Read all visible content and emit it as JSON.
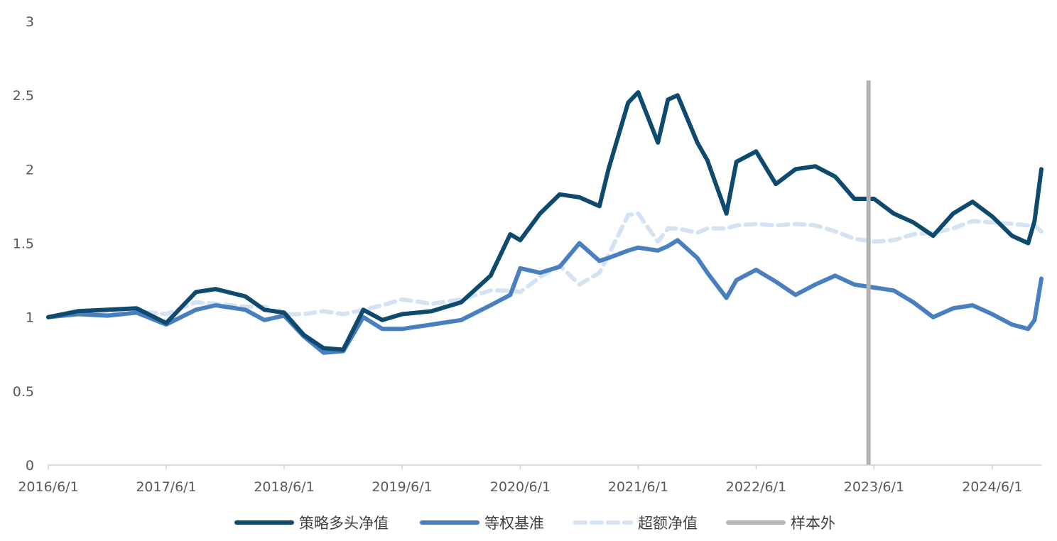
{
  "chart_data": {
    "type": "line",
    "title": "",
    "xlabel": "",
    "ylabel": "",
    "ylim": [
      0,
      3
    ],
    "yticks": [
      "0",
      "0.5",
      "1",
      "1.5",
      "2",
      "2.5",
      "3"
    ],
    "xlim": [
      "2016-06-01",
      "2024-10-31"
    ],
    "xtick_labels": [
      "2016/6/1",
      "2017/6/1",
      "2018/6/1",
      "2019/6/1",
      "2020/6/1",
      "2021/6/1",
      "2022/6/1",
      "2023/6/1",
      "2024/6/1"
    ],
    "xtick_dates": [
      "2016-06-01",
      "2017-06-01",
      "2018-06-01",
      "2019-06-01",
      "2020-06-01",
      "2021-06-01",
      "2022-06-01",
      "2023-06-01",
      "2024-06-01"
    ],
    "grid": false,
    "legend_position": "bottom",
    "colors": {
      "strategy": "#0d4a6e",
      "benchmark": "#4a7fbf",
      "excess": "#d3e3f3",
      "out_of_sample": "#b3b3b3"
    },
    "series": [
      {
        "name": "策略多头净值",
        "style": "solid",
        "x": [
          "2016-06-01",
          "2016-09-01",
          "2016-12-01",
          "2017-03-01",
          "2017-06-01",
          "2017-09-01",
          "2017-11-01",
          "2018-02-01",
          "2018-04-01",
          "2018-06-01",
          "2018-08-01",
          "2018-10-01",
          "2018-12-01",
          "2019-02-01",
          "2019-04-01",
          "2019-06-01",
          "2019-09-01",
          "2019-12-01",
          "2020-03-01",
          "2020-05-01",
          "2020-06-01",
          "2020-08-01",
          "2020-10-01",
          "2020-12-01",
          "2021-02-01",
          "2021-03-01",
          "2021-05-01",
          "2021-06-01",
          "2021-08-01",
          "2021-09-01",
          "2021-10-01",
          "2021-12-01",
          "2022-01-01",
          "2022-03-01",
          "2022-04-01",
          "2022-06-01",
          "2022-08-01",
          "2022-10-01",
          "2022-12-01",
          "2023-02-01",
          "2023-04-01",
          "2023-06-01",
          "2023-08-01",
          "2023-10-01",
          "2023-12-01",
          "2024-02-01",
          "2024-04-01",
          "2024-06-01",
          "2024-08-01",
          "2024-09-20",
          "2024-10-10",
          "2024-10-31"
        ],
        "values": [
          1.0,
          1.04,
          1.05,
          1.06,
          0.96,
          1.17,
          1.19,
          1.14,
          1.05,
          1.03,
          0.88,
          0.79,
          0.78,
          1.05,
          0.98,
          1.02,
          1.04,
          1.1,
          1.28,
          1.56,
          1.52,
          1.7,
          1.83,
          1.81,
          1.75,
          2.0,
          2.45,
          2.52,
          2.18,
          2.47,
          2.5,
          2.18,
          2.06,
          1.7,
          2.05,
          2.12,
          1.9,
          2.0,
          2.02,
          1.95,
          1.8,
          1.8,
          1.7,
          1.64,
          1.55,
          1.7,
          1.78,
          1.68,
          1.55,
          1.5,
          1.65,
          2.0
        ]
      },
      {
        "name": "等权基准",
        "style": "solid",
        "x": [
          "2016-06-01",
          "2016-09-01",
          "2016-12-01",
          "2017-03-01",
          "2017-06-01",
          "2017-09-01",
          "2017-11-01",
          "2018-02-01",
          "2018-04-01",
          "2018-06-01",
          "2018-08-01",
          "2018-10-01",
          "2018-12-01",
          "2019-02-01",
          "2019-04-01",
          "2019-06-01",
          "2019-09-01",
          "2019-12-01",
          "2020-03-01",
          "2020-05-01",
          "2020-06-01",
          "2020-08-01",
          "2020-10-01",
          "2020-12-01",
          "2021-02-01",
          "2021-03-01",
          "2021-05-01",
          "2021-06-01",
          "2021-08-01",
          "2021-09-01",
          "2021-10-01",
          "2021-12-01",
          "2022-01-01",
          "2022-03-01",
          "2022-04-01",
          "2022-06-01",
          "2022-08-01",
          "2022-10-01",
          "2022-12-01",
          "2023-02-01",
          "2023-04-01",
          "2023-06-01",
          "2023-08-01",
          "2023-10-01",
          "2023-12-01",
          "2024-02-01",
          "2024-04-01",
          "2024-06-01",
          "2024-08-01",
          "2024-09-20",
          "2024-10-10",
          "2024-10-31"
        ],
        "values": [
          1.0,
          1.02,
          1.01,
          1.03,
          0.95,
          1.05,
          1.08,
          1.05,
          0.98,
          1.01,
          0.87,
          0.76,
          0.77,
          1.0,
          0.92,
          0.92,
          0.95,
          0.98,
          1.08,
          1.15,
          1.33,
          1.3,
          1.34,
          1.5,
          1.38,
          1.4,
          1.45,
          1.47,
          1.45,
          1.48,
          1.52,
          1.4,
          1.3,
          1.13,
          1.25,
          1.32,
          1.24,
          1.15,
          1.22,
          1.28,
          1.22,
          1.2,
          1.18,
          1.1,
          1.0,
          1.06,
          1.08,
          1.02,
          0.95,
          0.92,
          0.98,
          1.26
        ]
      },
      {
        "name": "超额净值",
        "style": "dashed",
        "x": [
          "2016-06-01",
          "2016-09-01",
          "2016-12-01",
          "2017-03-01",
          "2017-06-01",
          "2017-09-01",
          "2017-11-01",
          "2018-02-01",
          "2018-04-01",
          "2018-06-01",
          "2018-08-01",
          "2018-10-01",
          "2018-12-01",
          "2019-02-01",
          "2019-04-01",
          "2019-06-01",
          "2019-09-01",
          "2019-12-01",
          "2020-03-01",
          "2020-05-01",
          "2020-06-01",
          "2020-08-01",
          "2020-10-01",
          "2020-12-01",
          "2021-02-01",
          "2021-03-01",
          "2021-05-01",
          "2021-06-01",
          "2021-08-01",
          "2021-09-01",
          "2021-10-01",
          "2021-12-01",
          "2022-01-01",
          "2022-03-01",
          "2022-04-01",
          "2022-06-01",
          "2022-08-01",
          "2022-10-01",
          "2022-12-01",
          "2023-02-01",
          "2023-04-01",
          "2023-06-01",
          "2023-08-01",
          "2023-10-01",
          "2023-12-01",
          "2024-02-01",
          "2024-04-01",
          "2024-06-01",
          "2024-08-01",
          "2024-09-20",
          "2024-10-10",
          "2024-10-31"
        ],
        "values": [
          1.0,
          1.02,
          1.04,
          1.04,
          1.02,
          1.1,
          1.09,
          1.07,
          1.07,
          1.02,
          1.02,
          1.04,
          1.02,
          1.05,
          1.08,
          1.12,
          1.09,
          1.12,
          1.18,
          1.18,
          1.17,
          1.27,
          1.35,
          1.22,
          1.3,
          1.42,
          1.69,
          1.7,
          1.51,
          1.6,
          1.6,
          1.57,
          1.6,
          1.6,
          1.62,
          1.63,
          1.62,
          1.63,
          1.62,
          1.58,
          1.53,
          1.51,
          1.52,
          1.56,
          1.57,
          1.6,
          1.65,
          1.64,
          1.63,
          1.62,
          1.62,
          1.58
        ]
      }
    ],
    "vertical_marker": {
      "name": "样本外",
      "x": "2023-05-15",
      "y_top": 2.6
    }
  }
}
